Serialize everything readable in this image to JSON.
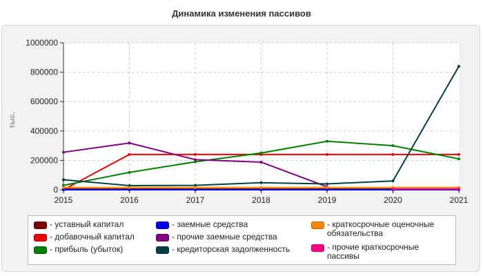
{
  "chart_data": {
    "type": "line",
    "title": "Динамика изменения пассивов",
    "ylabel": "тыс.",
    "xlabel": "",
    "categories": [
      "2015",
      "2016",
      "2017",
      "2018",
      "2019",
      "2020",
      "2021"
    ],
    "ylim": [
      0,
      1000000
    ],
    "yticks": [
      "0",
      "200000",
      "400000",
      "600000",
      "800000",
      "1000000"
    ],
    "grid": true,
    "legend_position": "bottom",
    "series": [
      {
        "name": "- уставный капитал",
        "color": "#7a0000",
        "values": [
          5000,
          5000,
          5000,
          5000,
          5000,
          5000,
          5000
        ]
      },
      {
        "name": "- добавочный капитал",
        "color": "#ee0000",
        "values": [
          0,
          240000,
          240000,
          240000,
          240000,
          240000,
          240000
        ]
      },
      {
        "name": "- прибыль (убыток)",
        "color": "#008000",
        "values": [
          30000,
          118000,
          190000,
          250000,
          330000,
          300000,
          210000
        ]
      },
      {
        "name": "- заемные средства",
        "color": "#0000ee",
        "values": [
          0,
          0,
          0,
          0,
          0,
          0,
          0
        ]
      },
      {
        "name": "- прочие заемные средства",
        "color": "#800080",
        "values": [
          255000,
          318000,
          205000,
          188000,
          20000,
          null,
          null
        ]
      },
      {
        "name": "- кредиторская задолженность",
        "color": "#004040",
        "values": [
          68000,
          28000,
          30000,
          48000,
          40000,
          60000,
          840000
        ]
      },
      {
        "name": "- краткосрочные оценочные обязательства",
        "color": "#ff8800",
        "values": [
          15000,
          15000,
          15000,
          15000,
          15000,
          15000,
          15000
        ]
      },
      {
        "name": "- прочие краткосрочные пассивы",
        "color": "#ff0080",
        "values": [
          null,
          null,
          null,
          null,
          null,
          5000,
          5000
        ]
      }
    ]
  }
}
